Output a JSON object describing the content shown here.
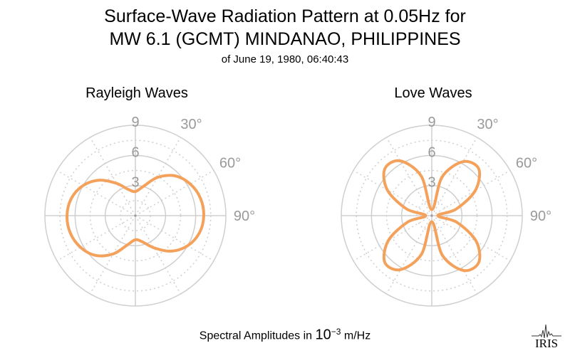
{
  "title": {
    "line1": "Surface-Wave Radiation Pattern at 0.05Hz for",
    "line2": "MW 6.1 (GCMT) MINDANAO, PHILIPPINES",
    "line3": "of June 19, 1980, 06:40:43"
  },
  "footer": {
    "prefix": "Spectral Amplitudes in ",
    "base": "10",
    "exponent": "−3",
    "unit": " m/Hz"
  },
  "logo": {
    "text": "IRIS"
  },
  "colors": {
    "pattern": "#f4a15c",
    "grid": "#cfcfcf",
    "tick_label": "#9a9a9a"
  },
  "chart_data": [
    {
      "type": "polar-line",
      "title": "Rayleigh Waves",
      "radial_ticks": [
        "3",
        "6",
        "9"
      ],
      "radial_range": [
        0,
        9
      ],
      "angle_labels": [
        "30°",
        "60°",
        "90°"
      ],
      "angles_deg": [
        0,
        15,
        30,
        45,
        60,
        75,
        90,
        105,
        120,
        135,
        150,
        165,
        180,
        195,
        210,
        225,
        240,
        255,
        270,
        285,
        300,
        315,
        330,
        345
      ],
      "amplitudes": [
        2.4,
        3.0,
        4.4,
        5.6,
        6.3,
        6.7,
        6.8,
        6.6,
        6.0,
        5.0,
        3.7,
        2.7,
        2.4,
        3.0,
        4.4,
        5.6,
        6.3,
        6.7,
        6.8,
        6.6,
        6.0,
        5.0,
        3.7,
        2.7
      ]
    },
    {
      "type": "polar-line",
      "title": "Love Waves",
      "radial_ticks": [
        "3",
        "6",
        "9"
      ],
      "radial_range": [
        0,
        9
      ],
      "angle_labels": [
        "30°",
        "60°",
        "90°"
      ],
      "angles_deg": [
        0,
        15,
        30,
        45,
        60,
        75,
        90,
        105,
        120,
        135,
        150,
        165,
        180,
        195,
        210,
        225,
        240,
        255,
        270,
        285,
        300,
        315,
        330,
        345
      ],
      "amplitudes": [
        0.6,
        4.0,
        6.2,
        6.6,
        5.0,
        2.5,
        0.6,
        2.6,
        5.1,
        6.6,
        6.3,
        4.1,
        0.6,
        4.0,
        6.2,
        6.6,
        5.0,
        2.5,
        0.6,
        2.6,
        5.1,
        6.6,
        6.3,
        4.1
      ]
    }
  ]
}
